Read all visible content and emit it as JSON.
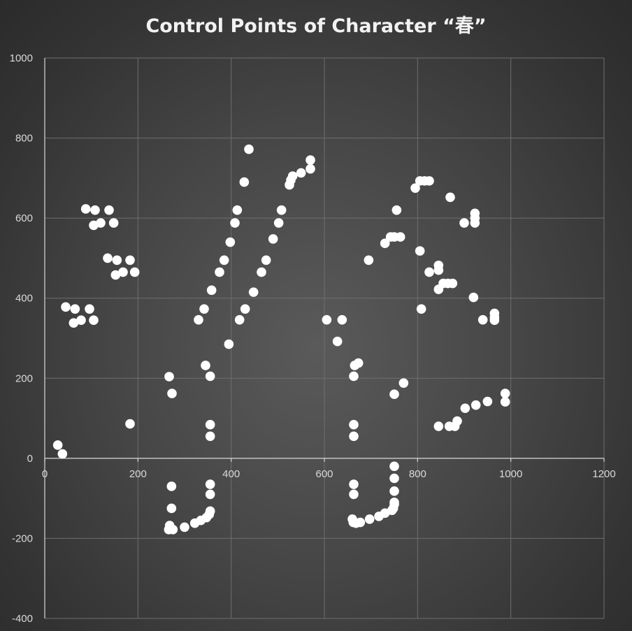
{
  "chart_data": {
    "type": "scatter",
    "title": "Control Points of Character “春”",
    "xlabel": "",
    "ylabel": "",
    "xlim": [
      0,
      1200
    ],
    "ylim": [
      -400,
      1000
    ],
    "x_ticks": [
      0,
      200,
      400,
      600,
      800,
      1000,
      1200
    ],
    "y_ticks": [
      -400,
      -200,
      0,
      200,
      400,
      600,
      800,
      1000
    ],
    "grid": true,
    "legend": "none",
    "colors": {
      "background": "#404040",
      "marker": "#ffffff",
      "grid": "#6e6e6e",
      "axis": "#d9d9d9",
      "text": "#f2f2f2"
    },
    "series": [
      {
        "points": [
          [
            28,
            33
          ],
          [
            38,
            11
          ],
          [
            45,
            378
          ],
          [
            65,
            373
          ],
          [
            62,
            338
          ],
          [
            78,
            345
          ],
          [
            96,
            373
          ],
          [
            105,
            345
          ],
          [
            88,
            623
          ],
          [
            108,
            620
          ],
          [
            105,
            582
          ],
          [
            120,
            588
          ],
          [
            138,
            620
          ],
          [
            148,
            588
          ],
          [
            135,
            500
          ],
          [
            155,
            495
          ],
          [
            152,
            458
          ],
          [
            168,
            465
          ],
          [
            183,
            495
          ],
          [
            193,
            465
          ],
          [
            183,
            86
          ],
          [
            267,
            204
          ],
          [
            273,
            162
          ],
          [
            272,
            -70
          ],
          [
            272,
            -125
          ],
          [
            268,
            -168
          ],
          [
            266,
            -178
          ],
          [
            275,
            -178
          ],
          [
            300,
            -172
          ],
          [
            322,
            -162
          ],
          [
            335,
            -155
          ],
          [
            347,
            -148
          ],
          [
            353,
            -140
          ],
          [
            355,
            -132
          ],
          [
            355,
            -90
          ],
          [
            355,
            -65
          ],
          [
            330,
            346
          ],
          [
            342,
            373
          ],
          [
            345,
            232
          ],
          [
            355,
            205
          ],
          [
            358,
            420
          ],
          [
            355,
            84
          ],
          [
            355,
            55
          ],
          [
            375,
            465
          ],
          [
            385,
            495
          ],
          [
            395,
            285
          ],
          [
            398,
            540
          ],
          [
            408,
            588
          ],
          [
            413,
            620
          ],
          [
            418,
            346
          ],
          [
            428,
            690
          ],
          [
            430,
            373
          ],
          [
            438,
            772
          ],
          [
            448,
            415
          ],
          [
            465,
            465
          ],
          [
            475,
            495
          ],
          [
            490,
            548
          ],
          [
            502,
            588
          ],
          [
            508,
            620
          ],
          [
            525,
            683
          ],
          [
            528,
            695
          ],
          [
            532,
            705
          ],
          [
            550,
            713
          ],
          [
            570,
            723
          ],
          [
            570,
            745
          ],
          [
            605,
            346
          ],
          [
            628,
            292
          ],
          [
            638,
            346
          ],
          [
            663,
            205
          ],
          [
            665,
            232
          ],
          [
            673,
            238
          ],
          [
            663,
            84
          ],
          [
            663,
            55
          ],
          [
            663,
            -65
          ],
          [
            663,
            -90
          ],
          [
            660,
            -152
          ],
          [
            662,
            -160
          ],
          [
            668,
            -162
          ],
          [
            677,
            -160
          ],
          [
            697,
            -152
          ],
          [
            717,
            -145
          ],
          [
            730,
            -137
          ],
          [
            745,
            -130
          ],
          [
            748,
            -125
          ],
          [
            750,
            -115
          ],
          [
            750,
            -110
          ],
          [
            750,
            -82
          ],
          [
            750,
            -50
          ],
          [
            750,
            -20
          ],
          [
            695,
            495
          ],
          [
            730,
            537
          ],
          [
            742,
            553
          ],
          [
            750,
            553
          ],
          [
            763,
            553
          ],
          [
            755,
            620
          ],
          [
            750,
            160
          ],
          [
            770,
            188
          ],
          [
            795,
            675
          ],
          [
            805,
            693
          ],
          [
            815,
            693
          ],
          [
            825,
            693
          ],
          [
            805,
            518
          ],
          [
            808,
            373
          ],
          [
            825,
            465
          ],
          [
            845,
            470
          ],
          [
            845,
            482
          ],
          [
            845,
            422
          ],
          [
            855,
            437
          ],
          [
            865,
            437
          ],
          [
            875,
            437
          ],
          [
            870,
            652
          ],
          [
            845,
            80
          ],
          [
            868,
            80
          ],
          [
            880,
            80
          ],
          [
            885,
            93
          ],
          [
            902,
            125
          ],
          [
            925,
            133
          ],
          [
            950,
            142
          ],
          [
            900,
            588
          ],
          [
            923,
            612
          ],
          [
            923,
            600
          ],
          [
            923,
            588
          ],
          [
            920,
            402
          ],
          [
            940,
            346
          ],
          [
            965,
            362
          ],
          [
            965,
            352
          ],
          [
            965,
            345
          ],
          [
            988,
            162
          ],
          [
            988,
            141
          ]
        ]
      }
    ]
  }
}
